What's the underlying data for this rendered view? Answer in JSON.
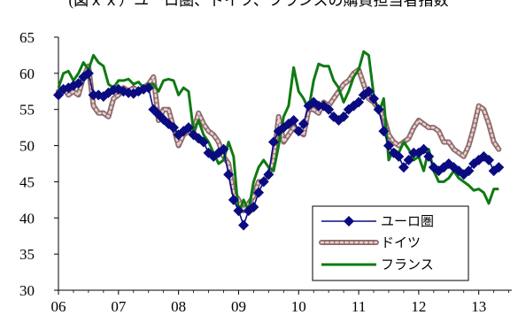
{
  "chart_data": {
    "type": "line",
    "title_fragment": "(図ｘｘ）ユーロ圏、ドイツ、フランスの購買担当者指数",
    "xlabel": "",
    "ylabel": "",
    "ylim": [
      30,
      65
    ],
    "yticks": [
      30,
      35,
      40,
      45,
      50,
      55,
      60,
      65
    ],
    "xlim": [
      2006.0,
      2013.55
    ],
    "xticks": [
      {
        "value": 2006,
        "label": "06"
      },
      {
        "value": 2007,
        "label": "07"
      },
      {
        "value": 2008,
        "label": "08"
      },
      {
        "value": 2009,
        "label": "09"
      },
      {
        "value": 2010,
        "label": "10"
      },
      {
        "value": 2011,
        "label": "11"
      },
      {
        "value": 2012,
        "label": "12"
      },
      {
        "value": 2013,
        "label": "13"
      }
    ],
    "grid": false,
    "legend_position": "bottom-right",
    "series": [
      {
        "name": "ユーロ圏",
        "color": "#0b0b80",
        "style": "line-diamond",
        "x": [
          2006.0,
          2006.083,
          2006.167,
          2006.25,
          2006.333,
          2006.417,
          2006.5,
          2006.583,
          2006.667,
          2006.75,
          2006.833,
          2006.917,
          2007.0,
          2007.083,
          2007.167,
          2007.25,
          2007.333,
          2007.417,
          2007.5,
          2007.583,
          2007.667,
          2007.75,
          2007.833,
          2007.917,
          2008.0,
          2008.083,
          2008.167,
          2008.25,
          2008.333,
          2008.417,
          2008.5,
          2008.583,
          2008.667,
          2008.75,
          2008.833,
          2008.917,
          2009.0,
          2009.083,
          2009.167,
          2009.25,
          2009.333,
          2009.417,
          2009.5,
          2009.583,
          2009.667,
          2009.75,
          2009.833,
          2009.917,
          2010.0,
          2010.083,
          2010.167,
          2010.25,
          2010.333,
          2010.417,
          2010.5,
          2010.583,
          2010.667,
          2010.75,
          2010.833,
          2010.917,
          2011.0,
          2011.083,
          2011.167,
          2011.25,
          2011.333,
          2011.417,
          2011.5,
          2011.583,
          2011.667,
          2011.75,
          2011.833,
          2011.917,
          2012.0,
          2012.083,
          2012.167,
          2012.25,
          2012.333,
          2012.417,
          2012.5,
          2012.583,
          2012.667,
          2012.75,
          2012.833,
          2012.917,
          2013.0,
          2013.083,
          2013.167,
          2013.25,
          2013.333
        ],
        "values": [
          57.0,
          57.8,
          58.0,
          58.3,
          58.6,
          59.5,
          60.0,
          57.0,
          57.0,
          56.8,
          57.3,
          57.7,
          57.8,
          57.5,
          57.3,
          57.2,
          57.5,
          57.8,
          58.0,
          55.0,
          54.3,
          53.6,
          53.0,
          52.5,
          51.5,
          52.0,
          52.5,
          51.5,
          51.0,
          50.5,
          49.0,
          48.5,
          49.0,
          49.5,
          46.0,
          42.5,
          41.0,
          39.0,
          41.0,
          41.5,
          43.5,
          45.0,
          46.0,
          50.5,
          52.0,
          52.5,
          53.0,
          53.5,
          52.0,
          53.0,
          55.5,
          56.0,
          55.5,
          55.5,
          55.0,
          54.0,
          53.5,
          54.0,
          55.0,
          55.5,
          56.0,
          57.0,
          57.5,
          56.5,
          55.0,
          52.0,
          50.0,
          49.0,
          48.5,
          47.0,
          48.0,
          49.0,
          49.0,
          49.5,
          48.5,
          47.0,
          46.5,
          47.0,
          47.5,
          47.0,
          46.5,
          46.0,
          46.5,
          47.5,
          48.0,
          48.5,
          48.0,
          46.5,
          47.0
        ]
      },
      {
        "name": "ドイツ",
        "color": "#8e6b6b",
        "style": "thick-dotted",
        "x": [
          2006.0,
          2006.083,
          2006.167,
          2006.25,
          2006.333,
          2006.417,
          2006.5,
          2006.583,
          2006.667,
          2006.75,
          2006.833,
          2006.917,
          2007.0,
          2007.083,
          2007.167,
          2007.25,
          2007.333,
          2007.417,
          2007.5,
          2007.583,
          2007.667,
          2007.75,
          2007.833,
          2007.917,
          2008.0,
          2008.083,
          2008.167,
          2008.25,
          2008.333,
          2008.417,
          2008.5,
          2008.583,
          2008.667,
          2008.75,
          2008.833,
          2008.917,
          2009.0,
          2009.083,
          2009.167,
          2009.25,
          2009.333,
          2009.417,
          2009.5,
          2009.583,
          2009.667,
          2009.75,
          2009.833,
          2009.917,
          2010.0,
          2010.083,
          2010.167,
          2010.25,
          2010.333,
          2010.417,
          2010.5,
          2010.583,
          2010.667,
          2010.75,
          2010.833,
          2010.917,
          2011.0,
          2011.083,
          2011.167,
          2011.25,
          2011.333,
          2011.417,
          2011.5,
          2011.583,
          2011.667,
          2011.75,
          2011.833,
          2011.917,
          2012.0,
          2012.083,
          2012.167,
          2012.25,
          2012.333,
          2012.417,
          2012.5,
          2012.583,
          2012.667,
          2012.75,
          2012.833,
          2012.917,
          2013.0,
          2013.083,
          2013.167,
          2013.25,
          2013.333
        ],
        "values": [
          57.5,
          58.0,
          57.0,
          57.5,
          57.0,
          59.5,
          61.0,
          55.5,
          54.5,
          54.5,
          54.0,
          56.5,
          57.0,
          58.0,
          57.5,
          58.0,
          57.5,
          58.0,
          58.5,
          59.5,
          53.5,
          55.0,
          55.0,
          52.5,
          50.0,
          51.5,
          52.0,
          52.0,
          54.5,
          53.0,
          52.0,
          51.5,
          50.5,
          48.5,
          47.5,
          43.5,
          42.5,
          41.0,
          42.0,
          43.0,
          45.0,
          45.0,
          46.0,
          48.0,
          54.0,
          50.5,
          51.5,
          52.5,
          52.0,
          51.5,
          55.0,
          55.0,
          54.5,
          56.0,
          55.5,
          56.5,
          57.5,
          58.5,
          59.0,
          60.0,
          60.5,
          58.5,
          56.5,
          56.0,
          55.0,
          54.0,
          51.5,
          50.5,
          50.0,
          50.5,
          51.0,
          52.5,
          53.5,
          53.0,
          52.5,
          52.5,
          52.0,
          50.5,
          50.5,
          49.5,
          49.0,
          48.5,
          50.0,
          52.5,
          55.5,
          55.0,
          53.0,
          50.5,
          49.5
        ]
      },
      {
        "name": "フランス",
        "color": "#0f7a12",
        "style": "line",
        "x": [
          2006.0,
          2006.083,
          2006.167,
          2006.25,
          2006.333,
          2006.417,
          2006.5,
          2006.583,
          2006.667,
          2006.75,
          2006.833,
          2006.917,
          2007.0,
          2007.083,
          2007.167,
          2007.25,
          2007.333,
          2007.417,
          2007.5,
          2007.583,
          2007.667,
          2007.75,
          2007.833,
          2007.917,
          2008.0,
          2008.083,
          2008.167,
          2008.25,
          2008.333,
          2008.417,
          2008.5,
          2008.583,
          2008.667,
          2008.75,
          2008.833,
          2008.917,
          2009.0,
          2009.083,
          2009.167,
          2009.25,
          2009.333,
          2009.417,
          2009.5,
          2009.583,
          2009.667,
          2009.75,
          2009.833,
          2009.917,
          2010.0,
          2010.083,
          2010.167,
          2010.25,
          2010.333,
          2010.417,
          2010.5,
          2010.583,
          2010.667,
          2010.75,
          2010.833,
          2010.917,
          2011.0,
          2011.083,
          2011.167,
          2011.25,
          2011.333,
          2011.417,
          2011.5,
          2011.583,
          2011.667,
          2011.75,
          2011.833,
          2011.917,
          2012.0,
          2012.083,
          2012.167,
          2012.25,
          2012.333,
          2012.417,
          2012.5,
          2012.583,
          2012.667,
          2012.75,
          2012.833,
          2012.917,
          2013.0,
          2013.083,
          2013.167,
          2013.25,
          2013.333
        ],
        "values": [
          58.0,
          60.0,
          60.3,
          59.0,
          60.0,
          61.5,
          60.5,
          62.5,
          61.5,
          61.0,
          58.5,
          58.0,
          59.0,
          59.0,
          59.2,
          58.5,
          58.8,
          58.0,
          58.5,
          58.5,
          57.5,
          59.0,
          59.2,
          59.0,
          57.0,
          58.0,
          57.5,
          52.0,
          53.5,
          51.5,
          50.5,
          49.0,
          47.5,
          48.0,
          50.5,
          48.5,
          40.5,
          42.5,
          41.0,
          45.0,
          47.0,
          48.0,
          47.0,
          46.5,
          50.0,
          54.0,
          55.5,
          60.8,
          57.5,
          56.5,
          55.0,
          59.0,
          61.3,
          61.0,
          61.0,
          59.0,
          58.0,
          56.0,
          57.5,
          59.5,
          60.5,
          63.0,
          62.5,
          57.0,
          54.5,
          56.5,
          48.0,
          49.5,
          49.0,
          50.5,
          49.5,
          48.0,
          48.5,
          46.5,
          49.5,
          46.5,
          45.0,
          45.0,
          45.5,
          46.5,
          45.5,
          45.0,
          44.5,
          43.8,
          44.0,
          43.5,
          42.0,
          44.0,
          44.0
        ]
      }
    ]
  }
}
